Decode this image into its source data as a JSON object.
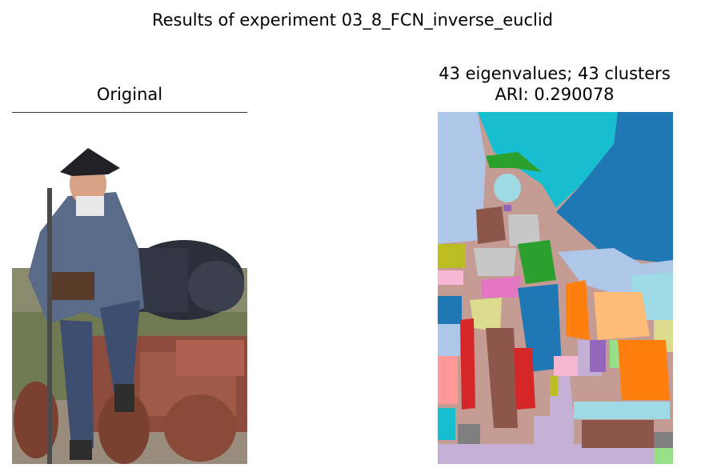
{
  "figure": {
    "suptitle": "Results of experiment 03_8_FCN_inverse_euclid",
    "left_panel": {
      "title": "Original"
    },
    "right_panel": {
      "title_line1": "43 eigenvalues; 43 clusters",
      "title_line2": "ARI: 0.290078"
    }
  },
  "colors": {
    "tab_blue": "#1f77b4",
    "tab_orange": "#ff7f0e",
    "tab_green": "#2ca02c",
    "tab_red": "#d62728",
    "tab_purple": "#9467bd",
    "tab_brown": "#8c564b",
    "tab_pink": "#e377c2",
    "tab_gray": "#7f7f7f",
    "tab_olive": "#bcbd22",
    "tab_cyan": "#17becf",
    "light_blue": "#aec7e8",
    "light_orange": "#ffbb78",
    "light_green": "#98df8a",
    "light_red": "#ff9896",
    "light_purple": "#c5b0d5",
    "light_brown": "#c49c94",
    "light_pink": "#f7b6d2",
    "light_gray": "#c7c7c7",
    "light_olive": "#dbdb8d",
    "light_cyan": "#9edae5"
  }
}
